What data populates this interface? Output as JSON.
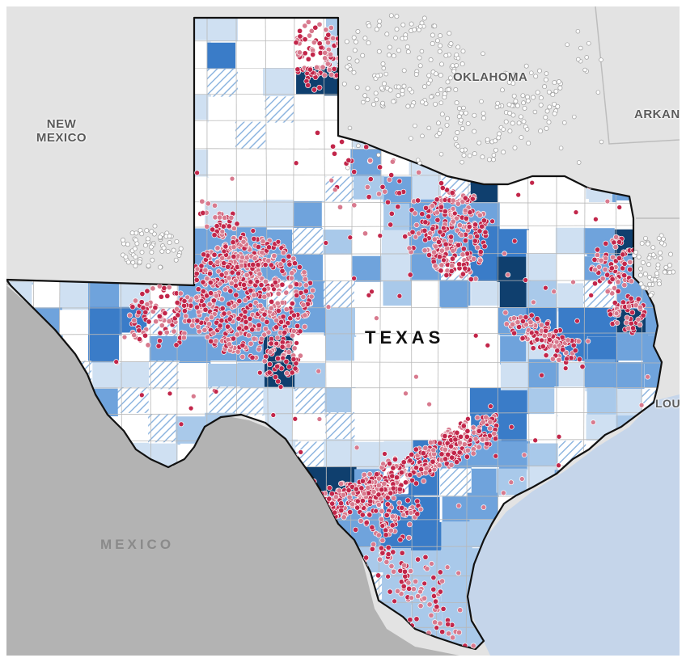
{
  "map": {
    "labels": {
      "new_mexico": "NEW MEXICO",
      "oklahoma": "OKLAHOMA",
      "arkansas": "ARKAN",
      "louisiana": "LOU",
      "mexico": "MEXICO",
      "texas": "TEXAS"
    },
    "colors": {
      "land_neighbor": "#e3e3e3",
      "mexico_land": "#b3b3b3",
      "water": "#c5d5ea",
      "county_white": "#ffffff",
      "county_light": "#cfe0f2",
      "county_lightmid": "#a9c9ea",
      "county_mid": "#6fa3dc",
      "county_strong": "#3a7cc8",
      "county_dark": "#0f3f6e",
      "hatch": "#8fb6e0",
      "dot_red": "#c2264a",
      "dot_pink": "#d87a8e",
      "dot_outside": "#ffffff"
    }
  }
}
